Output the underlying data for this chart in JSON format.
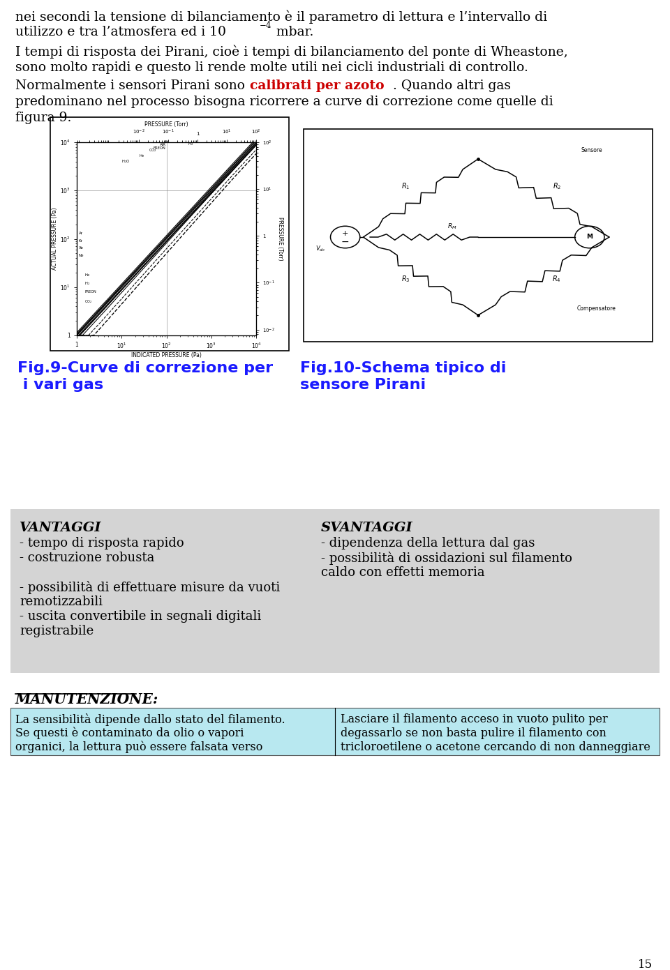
{
  "page_width": 9.6,
  "page_height": 13.91,
  "background_color": "#ffffff",
  "text_color": "#000000",
  "red_color": "#cc0000",
  "blue_color": "#1a1aff",
  "fig9_caption_line1": "Fig.9-Curve di correzione per",
  "fig9_caption_line2": " i vari gas",
  "fig10_caption_line1": "Fig.10-Schema tipico di",
  "fig10_caption_line2": "sensore Pirani",
  "vantaggi_title": "VANTAGGI",
  "vantaggi_items": [
    "- tempo di risposta rapido",
    "- costruzione robusta",
    "",
    "- possibilità di effettuare misure da vuoti",
    "remotizzabili",
    "- uscita convertibile in segnali digitali",
    "registrabile"
  ],
  "svantaggi_title": "SVANTAGGI",
  "svantaggi_items": [
    "- dipendenza della lettura dal gas",
    "- possibilità di ossidazioni sul filamento",
    "caldo con effetti memoria"
  ],
  "manutenzione_title": "MANUTENZIONE:",
  "manutenzione_left": "La sensibilità dipende dallo stato del filamento.\nSe questi è contaminato da olio o vapori\norganici, la lettura può essere falsata verso",
  "manutenzione_right": "Lasciare il filamento acceso in vuoto pulito per\ndegassarlo se non basta pulire il filamento con\ntricloroetilene o acetone cercando di non danneggiare",
  "page_number": "15",
  "gray_bg": "#d4d4d4",
  "light_blue_bg": "#b8e8f0"
}
